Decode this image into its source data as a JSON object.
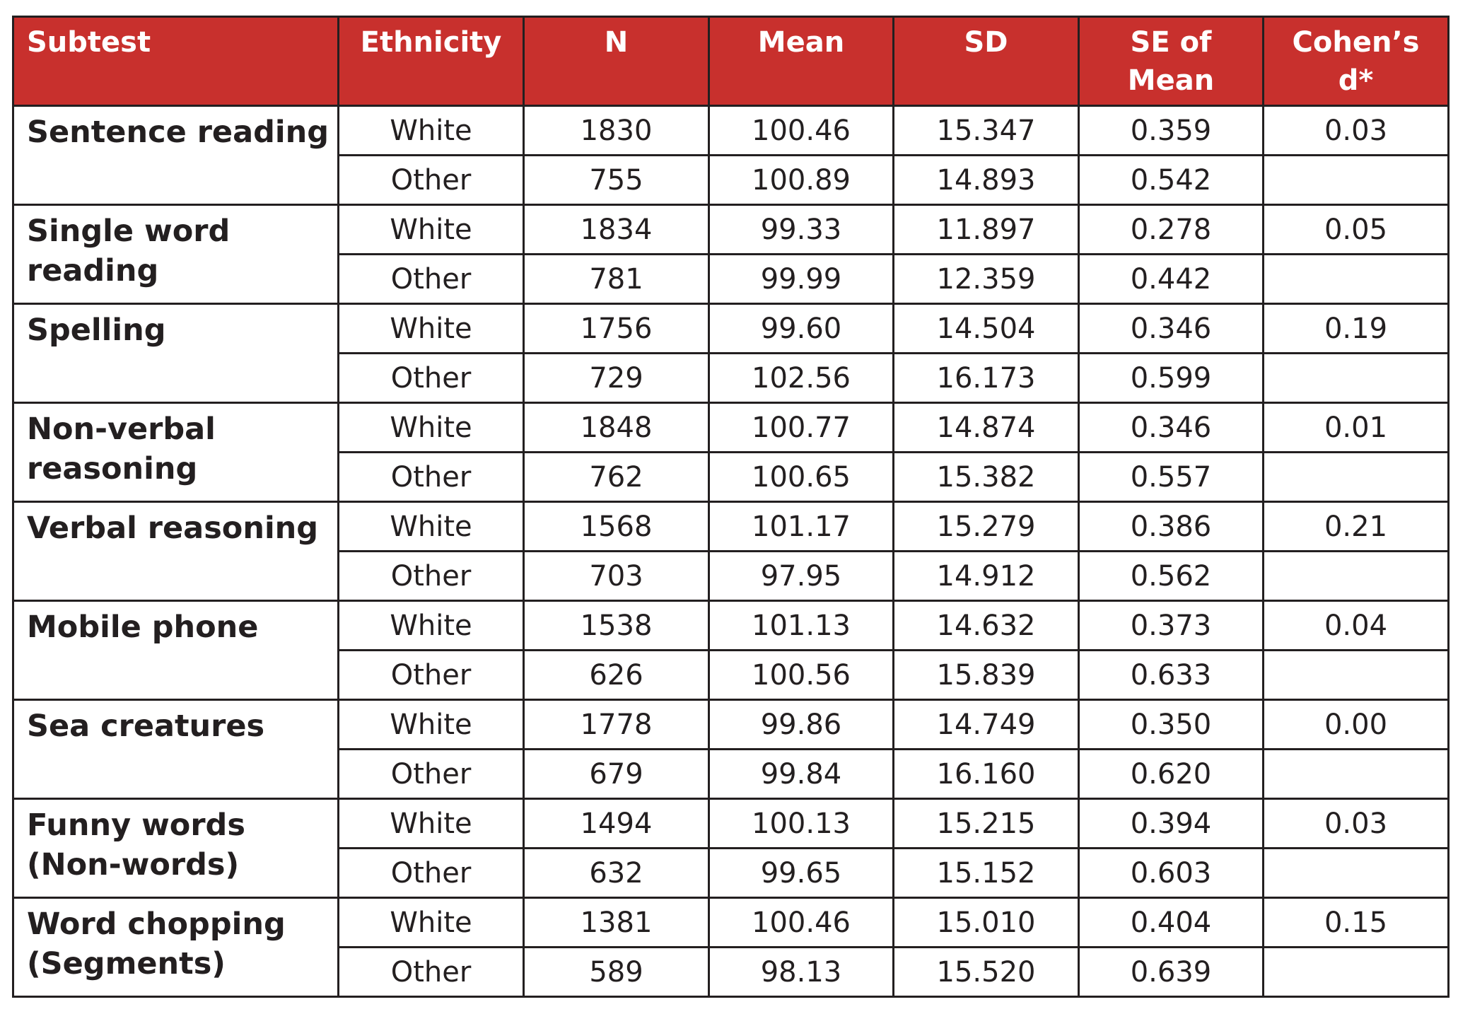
{
  "table": {
    "headers": {
      "subtest": "Subtest",
      "ethnicity": "Ethnicity",
      "n": "N",
      "mean": "Mean",
      "sd": "SD",
      "se_mean": "SE of Mean",
      "cohens_d": "Cohen’s d*"
    },
    "groups": [
      {
        "subtest": "Sentence reading",
        "cohens_d": "0.03",
        "rows": [
          {
            "ethnicity": "White",
            "n": "1830",
            "mean": "100.46",
            "sd": "15.347",
            "se": "0.359"
          },
          {
            "ethnicity": "Other",
            "n": "755",
            "mean": "100.89",
            "sd": "14.893",
            "se": "0.542"
          }
        ]
      },
      {
        "subtest": "Single word reading",
        "cohens_d": "0.05",
        "rows": [
          {
            "ethnicity": "White",
            "n": "1834",
            "mean": "99.33",
            "sd": "11.897",
            "se": "0.278"
          },
          {
            "ethnicity": "Other",
            "n": "781",
            "mean": "99.99",
            "sd": "12.359",
            "se": "0.442"
          }
        ]
      },
      {
        "subtest": "Spelling",
        "cohens_d": "0.19",
        "rows": [
          {
            "ethnicity": "White",
            "n": "1756",
            "mean": "99.60",
            "sd": "14.504",
            "se": "0.346"
          },
          {
            "ethnicity": "Other",
            "n": "729",
            "mean": "102.56",
            "sd": "16.173",
            "se": "0.599"
          }
        ]
      },
      {
        "subtest": "Non-verbal reasoning",
        "cohens_d": "0.01",
        "rows": [
          {
            "ethnicity": "White",
            "n": "1848",
            "mean": "100.77",
            "sd": "14.874",
            "se": "0.346"
          },
          {
            "ethnicity": "Other",
            "n": "762",
            "mean": "100.65",
            "sd": "15.382",
            "se": "0.557"
          }
        ]
      },
      {
        "subtest": "Verbal reasoning",
        "cohens_d": "0.21",
        "rows": [
          {
            "ethnicity": "White",
            "n": "1568",
            "mean": "101.17",
            "sd": "15.279",
            "se": "0.386"
          },
          {
            "ethnicity": "Other",
            "n": "703",
            "mean": "97.95",
            "sd": "14.912",
            "se": "0.562"
          }
        ]
      },
      {
        "subtest": "Mobile phone",
        "cohens_d": "0.04",
        "rows": [
          {
            "ethnicity": "White",
            "n": "1538",
            "mean": "101.13",
            "sd": "14.632",
            "se": "0.373"
          },
          {
            "ethnicity": "Other",
            "n": "626",
            "mean": "100.56",
            "sd": "15.839",
            "se": "0.633"
          }
        ]
      },
      {
        "subtest": "Sea creatures",
        "cohens_d": "0.00",
        "rows": [
          {
            "ethnicity": "White",
            "n": "1778",
            "mean": "99.86",
            "sd": "14.749",
            "se": "0.350"
          },
          {
            "ethnicity": "Other",
            "n": "679",
            "mean": "99.84",
            "sd": "16.160",
            "se": "0.620"
          }
        ]
      },
      {
        "subtest": "Funny words (Non-words)",
        "cohens_d": "0.03",
        "rows": [
          {
            "ethnicity": "White",
            "n": "1494",
            "mean": "100.13",
            "sd": "15.215",
            "se": "0.394"
          },
          {
            "ethnicity": "Other",
            "n": "632",
            "mean": "99.65",
            "sd": "15.152",
            "se": "0.603"
          }
        ]
      },
      {
        "subtest": "Word chopping (Segments)",
        "cohens_d": "0.15",
        "rows": [
          {
            "ethnicity": "White",
            "n": "1381",
            "mean": "100.46",
            "sd": "15.010",
            "se": "0.404"
          },
          {
            "ethnicity": "Other",
            "n": "589",
            "mean": "98.13",
            "sd": "15.520",
            "se": "0.639"
          }
        ]
      }
    ]
  }
}
